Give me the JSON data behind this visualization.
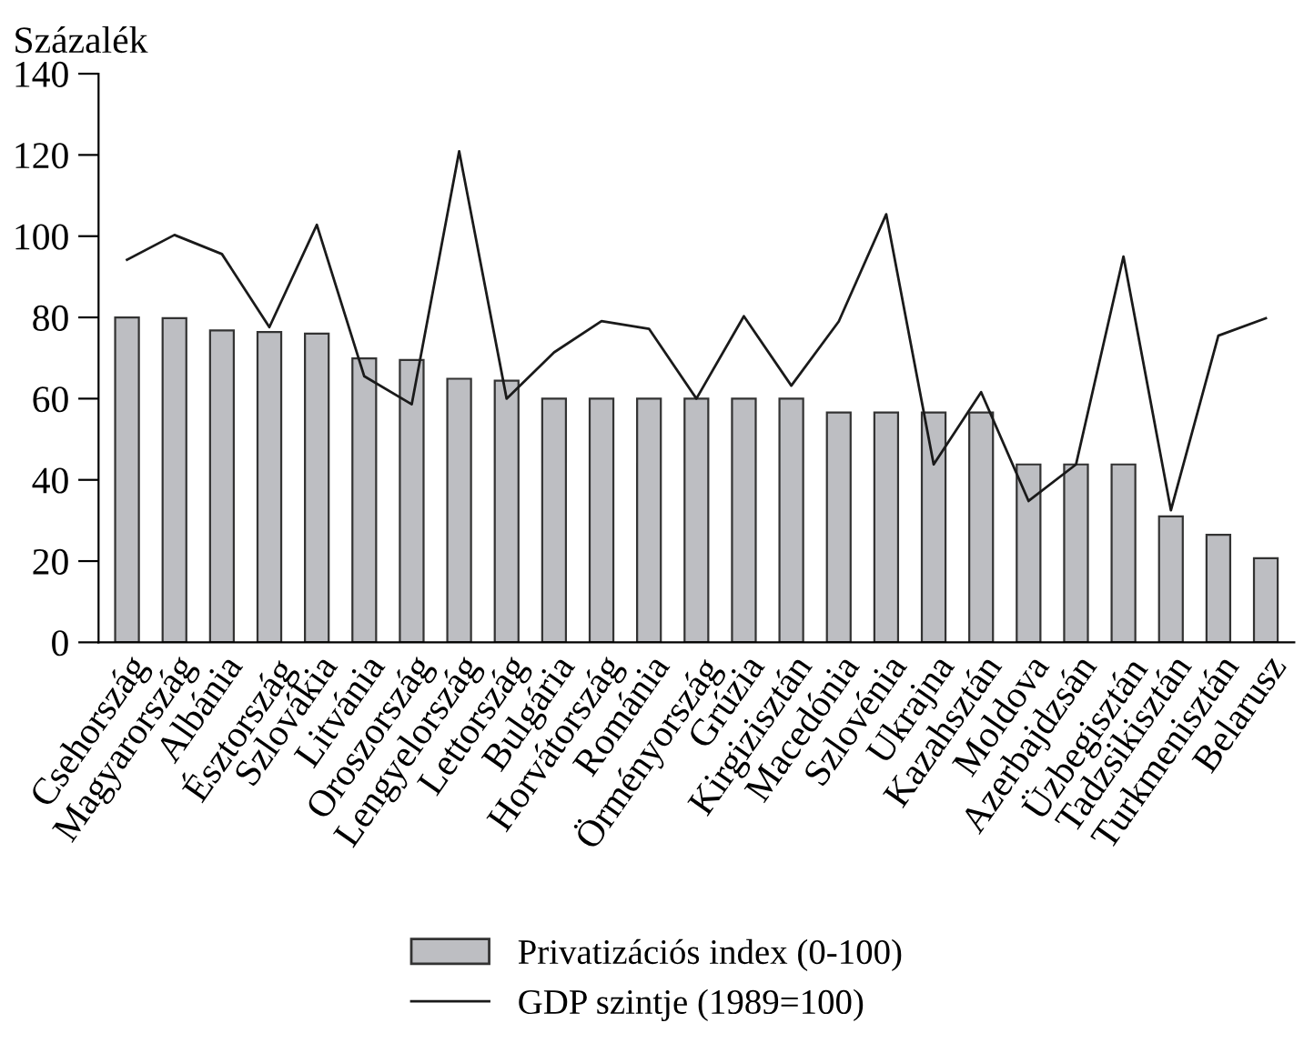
{
  "chart_data": {
    "type": "bar",
    "ylabel": "Százalék",
    "categories": [
      "Csehország",
      "Magyarország",
      "Albánia",
      "Észtország",
      "Szlovákia",
      "Litvánia",
      "Oroszország",
      "Lengyelország",
      "Lettország",
      "Bulgária",
      "Horvátország",
      "Románia",
      "Örményország",
      "Grúzia",
      "Kirgizisztán",
      "Macedónia",
      "Szlovénia",
      "Ukrajna",
      "Kazahsztán",
      "Moldova",
      "Azerbajdzsán",
      "Üzbegisztán",
      "Tadzsikisztán",
      "Turkmenisztán",
      "Belarusz"
    ],
    "series": [
      {
        "name": "Privatizációs index (0-100)",
        "color": "#bdbec2",
        "values": [
          80,
          79.8,
          76.8,
          76.4,
          76,
          69.9,
          69.5,
          64.9,
          64.4,
          60,
          60,
          60,
          60,
          60,
          60,
          56.6,
          56.6,
          56.6,
          56.6,
          43.8,
          43.8,
          43.8,
          31,
          26.5,
          20.7
        ]
      },
      {
        "name": "GDP szintje (1989=100)",
        "type": "line",
        "color": "#1a1a1a",
        "values": [
          94.2,
          100.3,
          95.6,
          77.6,
          102.8,
          65.5,
          58.6,
          120.9,
          60,
          71.4,
          79.1,
          77.2,
          60,
          80.3,
          63.2,
          79,
          105.4,
          43.8,
          61.6,
          34.8,
          43.8,
          95,
          32.5,
          75.5,
          79.8
        ]
      }
    ],
    "ylim": [
      0,
      140
    ],
    "yticks": [
      0,
      20,
      40,
      60,
      80,
      100,
      120,
      140
    ],
    "grid": false,
    "legend": "bottom"
  }
}
